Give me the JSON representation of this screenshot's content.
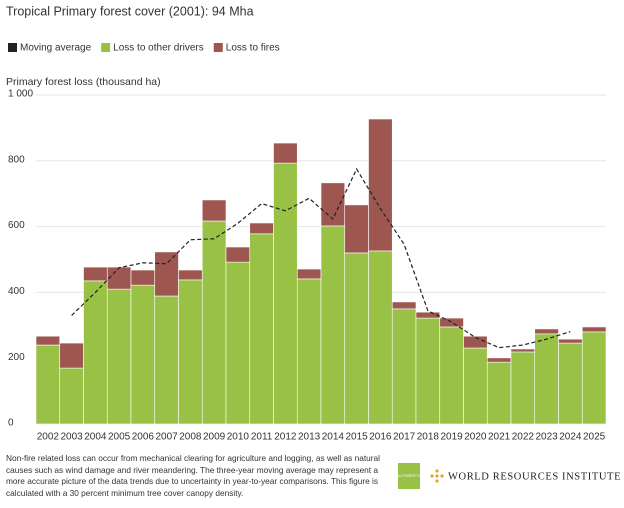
{
  "chart_data": {
    "type": "bar",
    "stacked": true,
    "title": "Tropical Primary forest cover (2001): 94 Mha",
    "y_label": "Primary forest loss (thousand ha)",
    "categories": [
      "2002",
      "2003",
      "2004",
      "2005",
      "2006",
      "2007",
      "2008",
      "2009",
      "2010",
      "2011",
      "2012",
      "2013",
      "2014",
      "2015",
      "2016",
      "2017",
      "2018",
      "2019",
      "2020",
      "2021",
      "2022",
      "2023",
      "2024",
      "2025"
    ],
    "series": [
      {
        "name": "Moving average",
        "type": "line",
        "color": "#222222",
        "values": [
          null,
          330,
          400,
          475,
          490,
          487,
          560,
          563,
          610,
          670,
          648,
          686,
          623,
          775,
          655,
          546,
          344,
          310,
          263,
          232,
          240,
          258,
          281,
          null
        ]
      },
      {
        "name": "Loss to other drivers",
        "color": "#98c145",
        "values": [
          240,
          170,
          435,
          410,
          422,
          389,
          438,
          617,
          492,
          578,
          793,
          441,
          602,
          520,
          526,
          350,
          322,
          295,
          231,
          188,
          219,
          274,
          246,
          280
        ]
      },
      {
        "name": "Loss to fires",
        "color": "#9e5750",
        "values": [
          27,
          76,
          42,
          67,
          46,
          134,
          30,
          64,
          46,
          33,
          61,
          30,
          131,
          146,
          401,
          21,
          18,
          27,
          36,
          13,
          9,
          15,
          12,
          15
        ]
      }
    ],
    "ylim": [
      0,
      1000
    ],
    "yticks": [
      0,
      200,
      400,
      600,
      800,
      {
        "value": 1000,
        "label": "1 000"
      }
    ],
    "grid": true
  },
  "footer": {
    "note": "Non-fire related loss can occur from mechanical clearing for agriculture and logging, as well as natural causes such as wind damage and river meandering. The three-year moving average may represent a more accurate picture of the data trends due to uncertainty in year-to-year comparisons. This figure is calculated with a 30 percent minimum tree cover canopy density.",
    "gfw_logo": "GLOBAL FOREST WATCH",
    "wri_logo": "WORLD RESOURCES INSTITUTE"
  }
}
